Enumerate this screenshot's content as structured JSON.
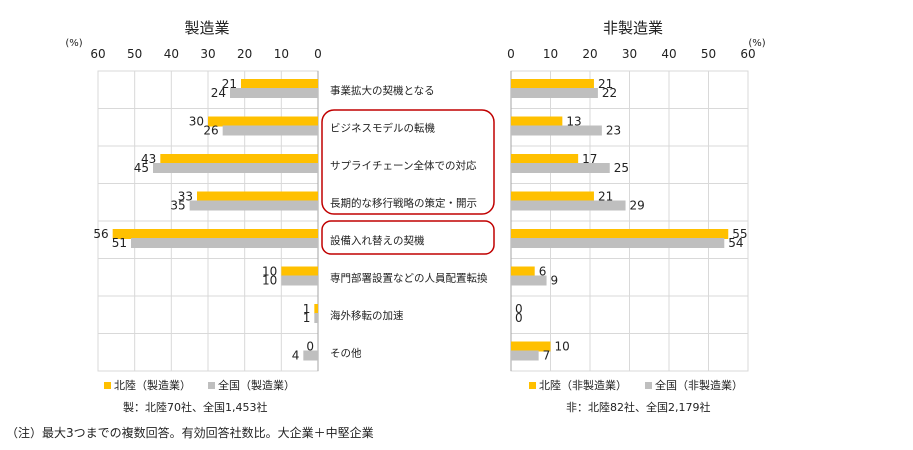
{
  "chart_data": [
    {
      "type": "bar",
      "orientation": "horizontal",
      "title": "製造業",
      "unit": "(%)",
      "xlim": [
        0,
        60
      ],
      "ticks": [
        60,
        50,
        40,
        30,
        20,
        10,
        0
      ],
      "direction": "reversed",
      "categories": [
        "事業拡大の契機となる",
        "ビジネスモデルの転機",
        "サプライチェーン全体での対応",
        "長期的な移行戦略の策定・開示",
        "設備入れ替えの契機",
        "専門部署設置などの人員配置転換",
        "海外移転の加速",
        "その他"
      ],
      "series": [
        {
          "name": "北陸（製造業）",
          "color": "#FFC000",
          "values": [
            21,
            30,
            43,
            33,
            56,
            10,
            1,
            0
          ]
        },
        {
          "name": "全国（製造業）",
          "color": "#BFBFBF",
          "values": [
            24,
            26,
            45,
            35,
            51,
            10,
            1,
            4
          ]
        }
      ],
      "note": "製：北陸70社、全国1,453社",
      "grid": true,
      "legend_position": "bottom"
    },
    {
      "type": "bar",
      "orientation": "horizontal",
      "title": "非製造業",
      "unit": "(%)",
      "xlim": [
        0,
        60
      ],
      "ticks": [
        0,
        10,
        20,
        30,
        40,
        50,
        60
      ],
      "categories": [
        "事業拡大の契機となる",
        "ビジネスモデルの転機",
        "サプライチェーン全体での対応",
        "長期的な移行戦略の策定・開示",
        "設備入れ替えの契機",
        "専門部署設置などの人員配置転換",
        "海外移転の加速",
        "その他"
      ],
      "series": [
        {
          "name": "北陸（非製造業）",
          "color": "#FFC000",
          "values": [
            21,
            13,
            17,
            21,
            55,
            6,
            0,
            10
          ]
        },
        {
          "name": "全国（非製造業）",
          "color": "#BFBFBF",
          "values": [
            22,
            23,
            25,
            29,
            54,
            9,
            0,
            7
          ]
        }
      ],
      "note": "非：北陸82社、全国2,179社",
      "grid": true,
      "legend_position": "bottom"
    }
  ],
  "footnote": "（注）最大3つまでの複数回答。有効回答社数比。大企業＋中堅企業",
  "highlight_color": "#C00000"
}
